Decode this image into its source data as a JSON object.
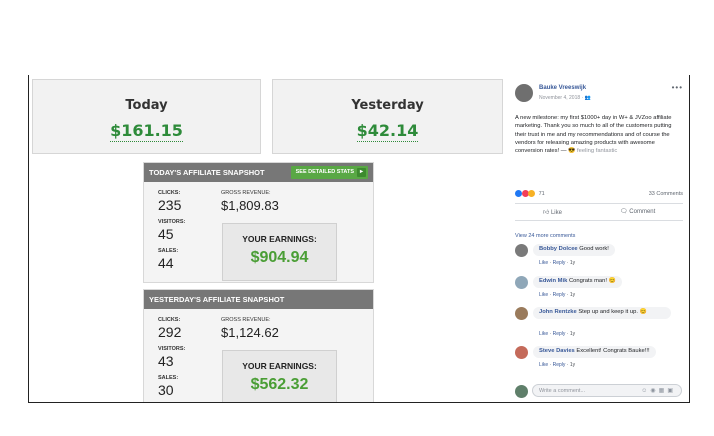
{
  "cards": {
    "today": {
      "label": "Today",
      "value": "$161.15"
    },
    "yesterday": {
      "label": "Yesterday",
      "value": "$42.14"
    }
  },
  "snapshots": [
    {
      "title": "TODAY'S AFFILIATE SNAPSHOT",
      "button": "SEE DETAILED STATS",
      "clicks_label": "CLICKS:",
      "clicks": "235",
      "visitors_label": "VISITORS:",
      "visitors": "45",
      "sales_label": "SALES:",
      "sales": "44",
      "gross_label": "GROSS REVENUE:",
      "gross": "$1,809.83",
      "earnings_label": "YOUR EARNINGS:",
      "earnings": "$904.94"
    },
    {
      "title": "YESTERDAY'S AFFILIATE SNAPSHOT",
      "clicks_label": "CLICKS:",
      "clicks": "292",
      "visitors_label": "VISITORS:",
      "visitors": "43",
      "sales_label": "SALES:",
      "sales": "30",
      "gross_label": "GROSS REVENUE:",
      "gross": "$1,124.62",
      "earnings_label": "YOUR EARNINGS:",
      "earnings": "$562.32"
    }
  ],
  "post": {
    "author": "Bauke Vreeswijk",
    "date": "November 4, 2018",
    "text": "A new milestone: my first $1000+ day in W+ & JVZoo affiliate marketing. Thank you so much to all of the customers putting their trust in me and my recommendations and of course the vendors for releasing amazing products with awesome conversion rates! —",
    "feeling": "feeling fantastic",
    "reactions": "71",
    "comments_count": "33 Comments",
    "like": "Like",
    "comment": "Comment",
    "view_more": "View 24 more comments",
    "comments": [
      {
        "name": "Bobby Dolcee",
        "text": "Good work!",
        "like": "Like",
        "reply": "Reply",
        "time": "1y"
      },
      {
        "name": "Edwin Mik",
        "text": "Congrats man!",
        "like": "Like",
        "reply": "Reply",
        "time": "1y"
      },
      {
        "name": "John Rentzke",
        "text": "Step up and keep it up.",
        "like": "Like",
        "reply": "Reply",
        "time": "1y"
      },
      {
        "name": "Steve Davies",
        "text": "Excellent! Congrats Bauke!!!",
        "like": "Like",
        "reply": "Reply",
        "time": "1y"
      }
    ],
    "write_placeholder": "Write a comment..."
  },
  "colors": {
    "green": "#2e8b3a",
    "header_gray": "#777777",
    "fb_blue": "#385898"
  }
}
